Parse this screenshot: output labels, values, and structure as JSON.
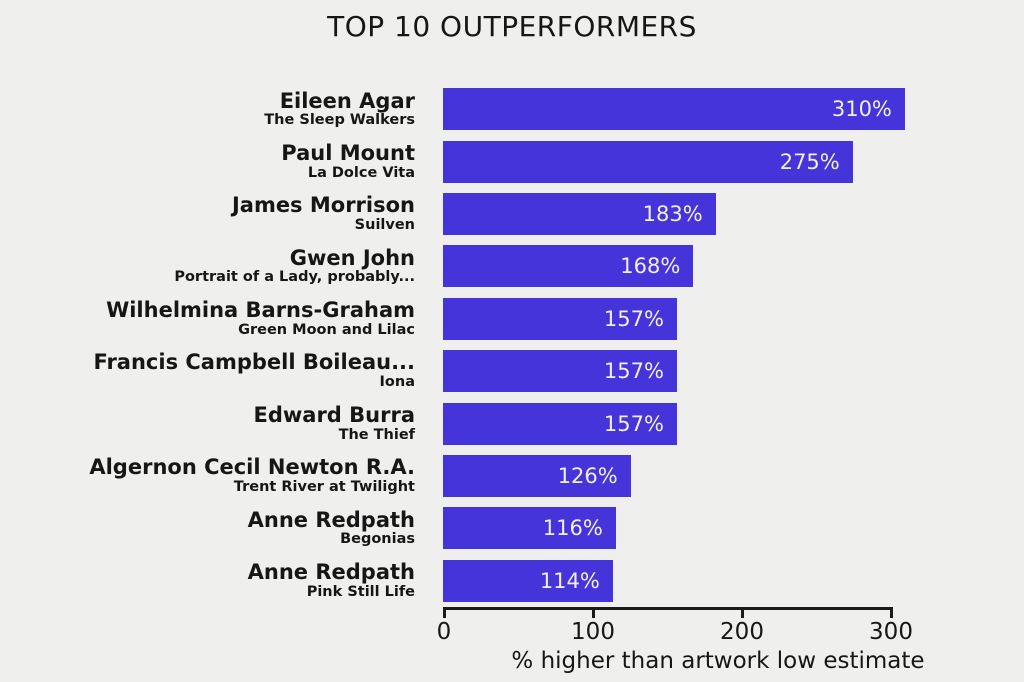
{
  "chart_data": {
    "type": "bar",
    "orientation": "horizontal",
    "title": "TOP 10 OUTPERFORMERS",
    "xlabel": "% higher than artwork low estimate",
    "xlim": [
      0,
      310
    ],
    "xticks": [
      0,
      100,
      200,
      300
    ],
    "grid": false,
    "legend": false,
    "colors": {
      "bar": "#4634db",
      "background": "#efefee",
      "value_text": "#f1efeb",
      "text": "#161616",
      "axis": "#1a1a1a"
    },
    "bars": [
      {
        "artist": "Eileen Agar",
        "artwork": "The Sleep Walkers",
        "value": 310,
        "label": "310%"
      },
      {
        "artist": "Paul Mount",
        "artwork": "La Dolce Vita",
        "value": 275,
        "label": "275%"
      },
      {
        "artist": "James Morrison",
        "artwork": "Suilven",
        "value": 183,
        "label": "183%"
      },
      {
        "artist": "Gwen John",
        "artwork": "Portrait of a Lady, probably...",
        "value": 168,
        "label": "168%"
      },
      {
        "artist": "Wilhelmina Barns-Graham",
        "artwork": "Green Moon and Lilac",
        "value": 157,
        "label": "157%"
      },
      {
        "artist": "Francis Campbell Boileau...",
        "artwork": "Iona",
        "value": 157,
        "label": "157%"
      },
      {
        "artist": "Edward Burra",
        "artwork": "The Thief",
        "value": 157,
        "label": "157%"
      },
      {
        "artist": "Algernon Cecil Newton R.A.",
        "artwork": "Trent River at Twilight",
        "value": 126,
        "label": "126%"
      },
      {
        "artist": "Anne Redpath",
        "artwork": "Begonias",
        "value": 116,
        "label": "116%"
      },
      {
        "artist": "Anne Redpath",
        "artwork": "Pink Still Life",
        "value": 114,
        "label": "114%"
      }
    ]
  }
}
